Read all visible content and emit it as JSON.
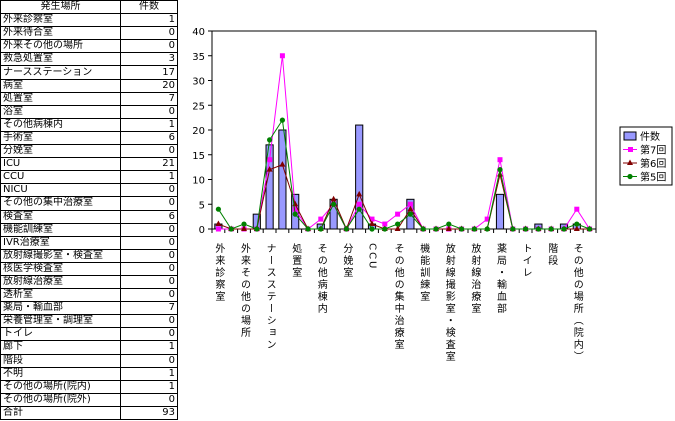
{
  "table": {
    "headers": [
      "発生場所",
      "件数"
    ],
    "rows": [
      [
        "外来診察室",
        "1"
      ],
      [
        "外来待合室",
        "0"
      ],
      [
        "外来その他の場所",
        "0"
      ],
      [
        "救急処置室",
        "3"
      ],
      [
        "ナースステーション",
        "17"
      ],
      [
        "病室",
        "20"
      ],
      [
        "処置室",
        "7"
      ],
      [
        "浴室",
        "0"
      ],
      [
        "その他病棟内",
        "1"
      ],
      [
        "手術室",
        "6"
      ],
      [
        "分娩室",
        "0"
      ],
      [
        "ICU",
        "21"
      ],
      [
        "CCU",
        "1"
      ],
      [
        "NICU",
        "0"
      ],
      [
        "その他の集中治療室",
        "0"
      ],
      [
        "検査室",
        "6"
      ],
      [
        "機能訓練室",
        "0"
      ],
      [
        "IVR治療室",
        "0"
      ],
      [
        "放射線撮影室・検査室",
        "0"
      ],
      [
        "核医学検査室",
        "0"
      ],
      [
        "放射線治療室",
        "0"
      ],
      [
        "透析室",
        "0"
      ],
      [
        "薬局・輸血部",
        "7"
      ],
      [
        "栄養管理室・調理室",
        "0"
      ],
      [
        "トイレ",
        "0"
      ],
      [
        "廊下",
        "1"
      ],
      [
        "階段",
        "0"
      ],
      [
        "不明",
        "1"
      ],
      [
        "その他の場所(院内)",
        "1"
      ],
      [
        "その他の場所(院外)",
        "0"
      ]
    ],
    "total": [
      "合計",
      "93"
    ]
  },
  "chart_data": {
    "type": "bar",
    "categories": [
      "外来診察室",
      "外来待合室",
      "外来その他の場所",
      "救急処置室",
      "ナースステーション",
      "病室",
      "処置室",
      "浴室",
      "その他病棟内",
      "手術室",
      "分娩室",
      "ICU",
      "CCU",
      "NICU",
      "その他の集中治療室",
      "検査室",
      "機能訓練室",
      "IVR治療室",
      "放射線撮影室・検査室",
      "核医学検査室",
      "放射線治療室",
      "透析室",
      "薬局・輸血部",
      "栄養管理室・調理室",
      "トイレ",
      "廊下",
      "階段",
      "不明",
      "その他の場所（院内）",
      "その他の場所(院外)"
    ],
    "shown_tick_labels": [
      "外来診察室",
      "外来その他の場所",
      "ナースステーション",
      "処置室",
      "その他病棟内",
      "分娩室",
      "CCU",
      "その他の集中治療室",
      "機能訓練室",
      "放射線撮影室・検査室",
      "放射線治療室",
      "薬局・輸血部",
      "トイレ",
      "階段",
      "その他の場所（院内）"
    ],
    "series": [
      {
        "name": "件数",
        "type": "bar",
        "color": "#9999ff",
        "values": [
          1,
          0,
          0,
          3,
          17,
          20,
          7,
          0,
          1,
          6,
          0,
          21,
          1,
          0,
          0,
          6,
          0,
          0,
          0,
          0,
          0,
          0,
          7,
          0,
          0,
          1,
          0,
          1,
          1,
          0
        ]
      },
      {
        "name": "第7回",
        "type": "line",
        "color": "#ff00ff",
        "marker": "square",
        "values": [
          0,
          0,
          0,
          0,
          14,
          35,
          4,
          0,
          2,
          5,
          0,
          5,
          2,
          1,
          3,
          5,
          0,
          0,
          0,
          0,
          0,
          2,
          14,
          0,
          0,
          0,
          0,
          0,
          4,
          0
        ]
      },
      {
        "name": "第6回",
        "type": "line",
        "color": "#800000",
        "marker": "triangle",
        "values": [
          1,
          0,
          0,
          0,
          12,
          13,
          5,
          0,
          0,
          6,
          0,
          7,
          1,
          0,
          0,
          4,
          0,
          0,
          0,
          0,
          0,
          0,
          11,
          0,
          0,
          0,
          0,
          0,
          0,
          0
        ]
      },
      {
        "name": "第5回",
        "type": "line",
        "color": "#008000",
        "marker": "circle",
        "values": [
          4,
          0,
          1,
          0,
          18,
          22,
          3,
          0,
          0,
          5,
          0,
          4,
          0,
          0,
          1,
          3,
          0,
          0,
          1,
          0,
          0,
          0,
          12,
          0,
          0,
          0,
          0,
          0,
          1,
          0
        ]
      }
    ],
    "yticks": [
      "0",
      "5",
      "10",
      "15",
      "20",
      "25",
      "30",
      "35",
      "40"
    ],
    "ylim": [
      0,
      40
    ],
    "legend": "right",
    "grid": false
  }
}
